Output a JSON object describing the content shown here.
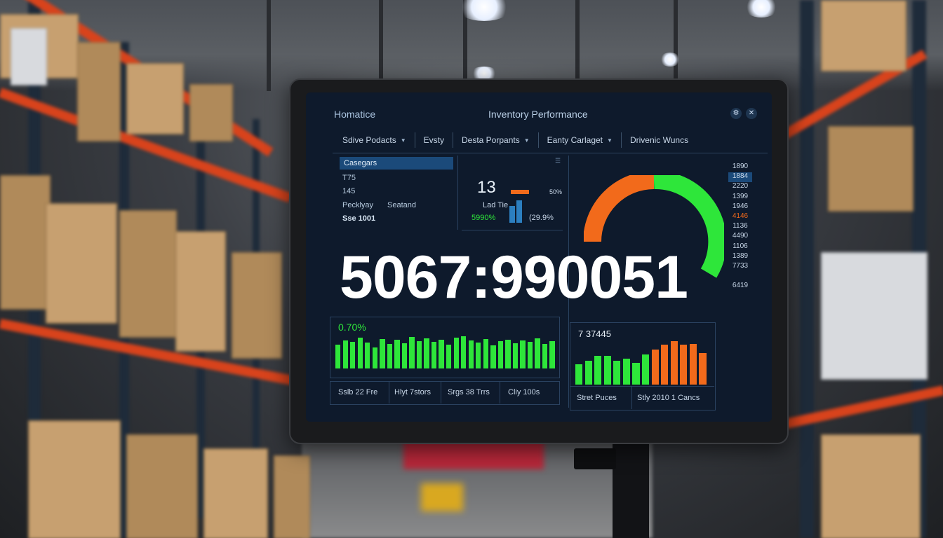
{
  "screen": {
    "brand": "Homatice",
    "title": "Inventory Performance",
    "icons": [
      "settings-icon",
      "close-icon"
    ],
    "filters": [
      {
        "label": "Sdive Podacts",
        "has_dropdown": true
      },
      {
        "label": "Evsty",
        "has_dropdown": false
      },
      {
        "label": "Desta Porpants",
        "has_dropdown": true
      },
      {
        "label": "Eanty Carlaget",
        "has_dropdown": true
      },
      {
        "label": "Drivenic Wuncs",
        "has_dropdown": false
      }
    ],
    "categories_panel": {
      "header": "Casegars",
      "line1": "T75",
      "line2": "145",
      "line3a": "Pecklyay",
      "line3b": "Seatand",
      "line4": "Sse 1001"
    },
    "kpi_panel": {
      "value": "13",
      "bar_label": "50%",
      "bar_fraction": 0.5,
      "sub_label": "Lad Tie",
      "green_pct": "5990%",
      "blue_pct": "(29.9%"
    },
    "big_number": "5067:990051",
    "gauge": {
      "orange_fraction": 0.5,
      "green_fraction": 0.5,
      "colors": {
        "orange": "#f26a1b",
        "green": "#2ee63a"
      }
    },
    "scale": [
      "1890",
      "1884",
      "2220",
      "1399",
      "1946",
      "4146",
      "1136",
      "4490",
      "1106",
      "1389",
      "7733",
      "",
      "6419"
    ],
    "left_chart": {
      "label": "0.70%",
      "values": [
        34,
        40,
        38,
        44,
        37,
        30,
        42,
        35,
        41,
        36,
        45,
        39,
        43,
        38,
        41,
        34,
        44,
        46,
        40,
        37,
        42,
        33,
        39,
        41,
        36,
        40,
        38,
        43,
        35,
        39
      ],
      "color": "#2ee63a",
      "footer": [
        "Sslb 22 Fre",
        "Hlyt 7stors",
        "Srgs 38 Trrs",
        "Cliy 100s"
      ]
    },
    "right_chart": {
      "label": "7 37445",
      "values": [
        28,
        33,
        40,
        40,
        33,
        36,
        30,
        42,
        48,
        55,
        60,
        55,
        56,
        44
      ],
      "colors": [
        "#2ee63a",
        "#2ee63a",
        "#2ee63a",
        "#2ee63a",
        "#2ee63a",
        "#2ee63a",
        "#2ee63a",
        "#2ee63a",
        "#f26a1b",
        "#f26a1b",
        "#f26a1b",
        "#f26a1b",
        "#f26a1b",
        "#f26a1b"
      ],
      "footer": [
        "Stret Puces",
        "Stly 2010 1 Cancs"
      ]
    }
  }
}
